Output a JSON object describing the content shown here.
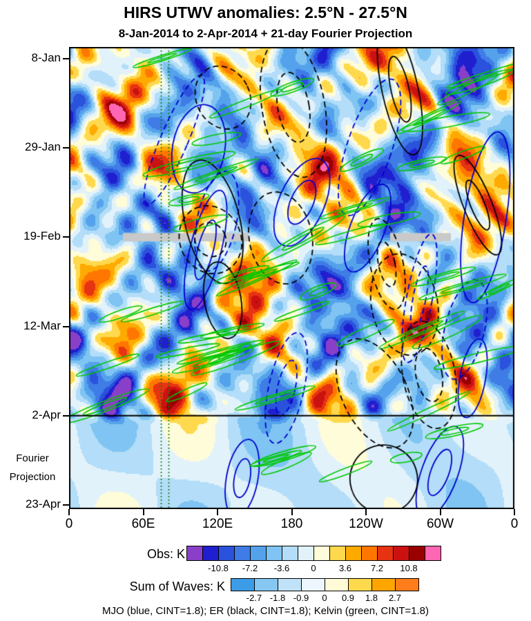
{
  "header": {
    "title": "HIRS UTWV anomalies: 2.5°N - 27.5°N",
    "subtitle": "8-Jan-2014 to 2-Apr-2014 + 21-day Fourier Projection"
  },
  "axes": {
    "y_tick_labels": [
      "8-Jan",
      "29-Jan",
      "19-Feb",
      "12-Mar",
      "2-Apr",
      "23-Apr"
    ],
    "x_tick_labels": [
      "0",
      "60E",
      "120E",
      "180",
      "120W",
      "60W",
      "0"
    ],
    "projection_label": [
      "Fourier",
      "Projection"
    ]
  },
  "colorbars": {
    "obs": {
      "label": "Obs: K",
      "tick_labels": [
        "-10.8",
        "-7.2",
        "-3.6",
        "0",
        "3.6",
        "7.2",
        "10.8"
      ]
    },
    "waves": {
      "label": "Sum of Waves: K",
      "tick_labels": [
        "-2.7",
        "-1.8",
        "-0.9",
        "0",
        "0.9",
        "1.8",
        "2.7"
      ]
    }
  },
  "caption": "MJO (blue, CINT=1.8); ER (black, CINT=1.8); Kelvin (green, CINT=1.8)",
  "chart_data": {
    "type": "heatmap",
    "title": "HIRS UTWV anomalies: 2.5°N - 27.5°N",
    "subtitle": "8-Jan-2014 to 2-Apr-2014 + 21-day Fourier Projection",
    "x_axis": {
      "ticks": [
        "0",
        "60E",
        "120E",
        "180",
        "120W",
        "60W",
        "0"
      ],
      "range_deg": [
        0,
        360
      ],
      "direction": "eastward-right"
    },
    "y_axis": {
      "ticks": [
        "8-Jan",
        "29-Jan",
        "19-Feb",
        "12-Mar",
        "2-Apr",
        "23-Apr"
      ],
      "tick_interval_days": 21,
      "total_days": 105,
      "direction": "time-downward"
    },
    "shading_obs": {
      "variable": "Obs",
      "units": "K",
      "level_min": -12.6,
      "level_max": 12.6,
      "cint": 1.8,
      "labeled_ticks": [
        -10.8,
        -7.2,
        -3.6,
        0,
        3.6,
        7.2,
        10.8
      ]
    },
    "shading_waves": {
      "variable": "Sum of Waves",
      "units": "K",
      "cint": 0.9,
      "labeled_ticks": [
        -2.7,
        -1.8,
        -0.9,
        0,
        0.9,
        1.8,
        2.7
      ]
    },
    "obs_palette": [
      "#8a3fc9",
      "#1f1fd0",
      "#2a52dc",
      "#3f7ce6",
      "#55a2ec",
      "#7fc4f2",
      "#b3ddf8",
      "#e2f2fb",
      "#fffcd9",
      "#ffd94d",
      "#ffaa00",
      "#ff7700",
      "#e63312",
      "#cc1111",
      "#990000",
      "#ff66b3"
    ],
    "waves_palette": [
      "#3c9ce8",
      "#86c7f2",
      "#c0e2f8",
      "#ecf6fc",
      "#fffbd6",
      "#ffd94d",
      "#ffa500",
      "#ff7d1a"
    ],
    "contours": [
      {
        "name": "MJO",
        "color": "#0000cd",
        "cint": 1.8,
        "style": "solid positive, dashed negative"
      },
      {
        "name": "ER",
        "color": "#000000",
        "cint": 1.8,
        "style": "solid positive, dashed negative"
      },
      {
        "name": "Kelvin",
        "color": "#00c800",
        "cint": 1.8,
        "style": "solid"
      }
    ],
    "annotations": {
      "fourier_projection_start": "2-Apr",
      "fourier_projection_length_days": 21,
      "missing_data_band_date": "19-Feb",
      "vertical_reference_lons_deg_e": [
        74,
        80
      ],
      "separator_line": "solid black at 2-Apr",
      "grid": "off",
      "plot_border": "2px black"
    }
  }
}
